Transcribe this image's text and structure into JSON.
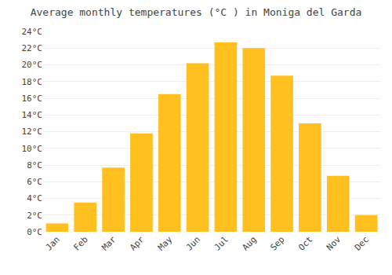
{
  "chart_data": {
    "type": "bar",
    "title": "Average monthly temperatures (°C ) in Moniga del Garda",
    "categories": [
      "Jan",
      "Feb",
      "Mar",
      "Apr",
      "May",
      "Jun",
      "Jul",
      "Aug",
      "Sep",
      "Oct",
      "Nov",
      "Dec"
    ],
    "values": [
      1.0,
      3.5,
      7.7,
      11.8,
      16.5,
      20.2,
      22.7,
      22.0,
      18.7,
      13.0,
      6.7,
      2.0
    ],
    "color": "#FFC020",
    "ylim": [
      0,
      24
    ],
    "yticks": [
      {
        "value": 0,
        "label": "0°C"
      },
      {
        "value": 2,
        "label": "2°C"
      },
      {
        "value": 4,
        "label": "4°C"
      },
      {
        "value": 6,
        "label": "6°C"
      },
      {
        "value": 8,
        "label": "8°C"
      },
      {
        "value": 10,
        "label": "10°C"
      },
      {
        "value": 12,
        "label": "12°C"
      },
      {
        "value": 14,
        "label": "14°C"
      },
      {
        "value": 16,
        "label": "16°C"
      },
      {
        "value": 18,
        "label": "18°C"
      },
      {
        "value": 20,
        "label": "20°C"
      },
      {
        "value": 22,
        "label": "22°C"
      },
      {
        "value": 24,
        "label": "24°C"
      }
    ],
    "grid": true
  }
}
